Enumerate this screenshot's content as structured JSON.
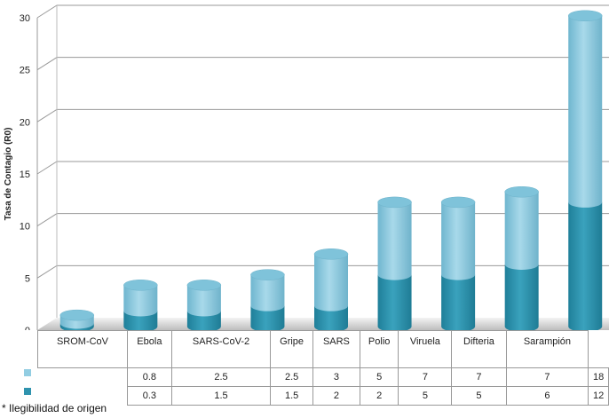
{
  "chart_data": {
    "type": "bar",
    "stacked": true,
    "style": "3d-cylinder",
    "title": "",
    "xlabel": "",
    "ylabel": "Tasa de Contagio (R0)",
    "ylim": [
      0,
      30
    ],
    "yticks": [
      0,
      5,
      10,
      15,
      20,
      25,
      30
    ],
    "grid": true,
    "categories": [
      "SROM-CoV",
      "Ebola",
      "SARS-CoV-2",
      "Gripe",
      "SARS",
      "Polio",
      "Viruela",
      "Difteria",
      "Sarampión"
    ],
    "series": [
      {
        "values": [
          0.3,
          1.5,
          1.5,
          2,
          2,
          5,
          5,
          6,
          12
        ],
        "color": "#2f93ae"
      },
      {
        "values": [
          0.8,
          2.5,
          2.5,
          3,
          5,
          7,
          7,
          7,
          18
        ],
        "color": "#92cde2"
      }
    ],
    "legend": "data-table"
  },
  "footnote": "* Ilegibilidad de origen"
}
